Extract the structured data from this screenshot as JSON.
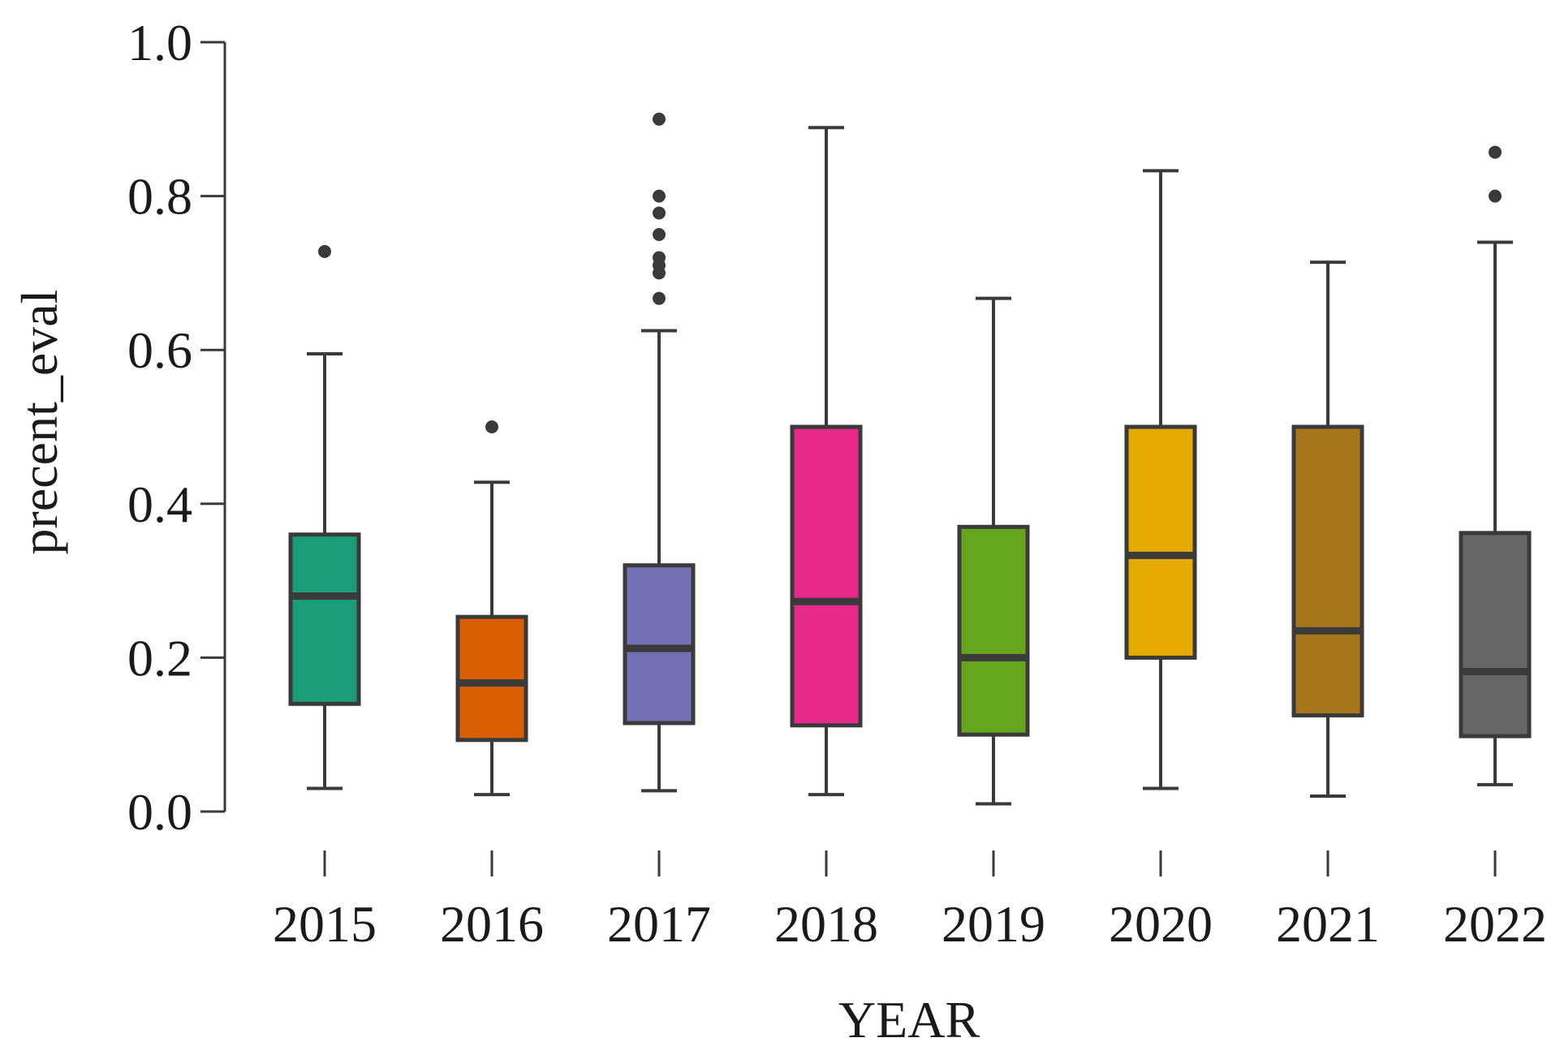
{
  "chart_data": {
    "type": "boxplot",
    "title": "",
    "xlabel": "YEAR",
    "ylabel": "precent_eval",
    "ylim": [
      0.0,
      1.0
    ],
    "yticks": [
      0.0,
      0.2,
      0.4,
      0.6,
      0.8,
      1.0
    ],
    "ytick_labels": [
      "0.0",
      "0.2",
      "0.4",
      "0.6",
      "0.8",
      "1.0"
    ],
    "grid": false,
    "categories": [
      "2015",
      "2016",
      "2017",
      "2018",
      "2019",
      "2020",
      "2021",
      "2022"
    ],
    "boxes": [
      {
        "category": "2015",
        "whisker_low": 0.03,
        "q1": 0.14,
        "median": 0.28,
        "q3": 0.36,
        "whisker_high": 0.595,
        "outliers": [
          0.728
        ],
        "color": "#1b9e77"
      },
      {
        "category": "2016",
        "whisker_low": 0.022,
        "q1": 0.093,
        "median": 0.167,
        "q3": 0.253,
        "whisker_high": 0.428,
        "outliers": [
          0.5
        ],
        "color": "#d95f02"
      },
      {
        "category": "2017",
        "whisker_low": 0.027,
        "q1": 0.115,
        "median": 0.212,
        "q3": 0.32,
        "whisker_high": 0.625,
        "outliers": [
          0.667,
          0.7,
          0.71,
          0.72,
          0.75,
          0.778,
          0.8,
          0.9
        ],
        "color": "#7570b3"
      },
      {
        "category": "2018",
        "whisker_low": 0.022,
        "q1": 0.112,
        "median": 0.273,
        "q3": 0.5,
        "whisker_high": 0.889,
        "outliers": [],
        "color": "#e7298a"
      },
      {
        "category": "2019",
        "whisker_low": 0.01,
        "q1": 0.1,
        "median": 0.2,
        "q3": 0.37,
        "whisker_high": 0.667,
        "outliers": [],
        "color": "#66a61e"
      },
      {
        "category": "2020",
        "whisker_low": 0.03,
        "q1": 0.2,
        "median": 0.333,
        "q3": 0.5,
        "whisker_high": 0.833,
        "outliers": [],
        "color": "#e6ab02"
      },
      {
        "category": "2021",
        "whisker_low": 0.02,
        "q1": 0.125,
        "median": 0.235,
        "q3": 0.5,
        "whisker_high": 0.714,
        "outliers": [],
        "color": "#a6761d"
      },
      {
        "category": "2022",
        "whisker_low": 0.035,
        "q1": 0.098,
        "median": 0.182,
        "q3": 0.362,
        "whisker_high": 0.74,
        "outliers": [
          0.8,
          0.857
        ],
        "color": "#666666"
      }
    ],
    "colors": {
      "line": "#3a3a3a",
      "text": "#1a1a1a"
    }
  }
}
